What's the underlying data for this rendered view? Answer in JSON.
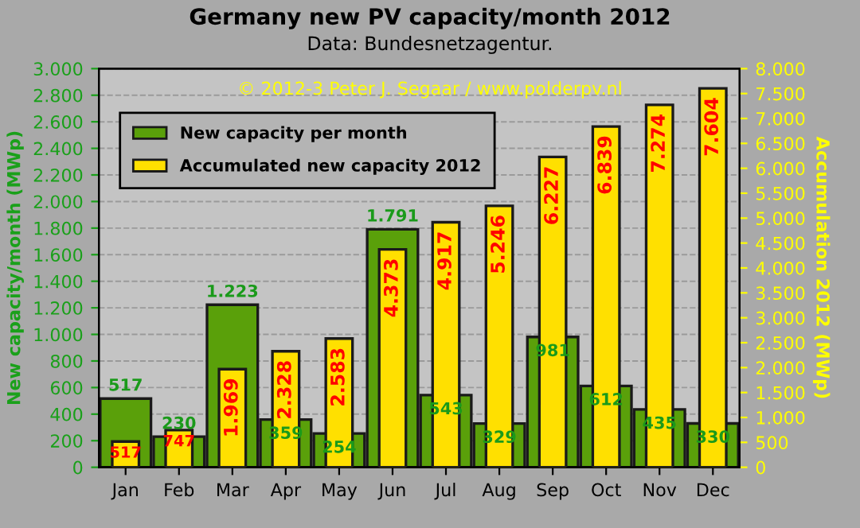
{
  "chart_data": {
    "type": "bar",
    "title": "Germany new PV capacity/month 2012",
    "subtitle": "Data: Bundesnetzagentur.",
    "ylabel": "New capacity/month (MWp)",
    "y2label": "Accumulation 2012 (MWp)",
    "annotations": [
      "© 2012-3 Peter J. Segaar / www.polderpv.nl"
    ],
    "categories": [
      "Jan",
      "Feb",
      "Mar",
      "Apr",
      "May",
      "Jun",
      "Jul",
      "Aug",
      "Sep",
      "Oct",
      "Nov",
      "Dec"
    ],
    "series": [
      {
        "name": "New capacity per month",
        "color": "#5aa00a",
        "values": [
          517,
          230,
          1223,
          359,
          254,
          1791,
          543,
          329,
          981,
          612,
          435,
          330
        ],
        "value_labels": [
          "517",
          "230",
          "1.223",
          "359",
          "254",
          "1.791",
          "543",
          "329",
          "981",
          "612",
          "435",
          "330"
        ]
      },
      {
        "name": "Accumulated new capacity 2012",
        "color": "#ffe000",
        "axis": "y2",
        "values": [
          517,
          747,
          1969,
          2328,
          2583,
          4373,
          4917,
          5246,
          6227,
          6839,
          7274,
          7604
        ],
        "value_labels": [
          "517",
          "747",
          "1.969",
          "2.328",
          "2.583",
          "4.373",
          "4.917",
          "5.246",
          "6.227",
          "6.839",
          "7.274",
          "7.604"
        ]
      }
    ],
    "ylim": [
      0,
      3000
    ],
    "yticks": [
      {
        "value": 0,
        "label": "0"
      },
      {
        "value": 200,
        "label": "200"
      },
      {
        "value": 400,
        "label": "400"
      },
      {
        "value": 600,
        "label": "600"
      },
      {
        "value": 800,
        "label": "800"
      },
      {
        "value": 1000,
        "label": "1.000"
      },
      {
        "value": 1200,
        "label": "1.200"
      },
      {
        "value": 1400,
        "label": "1.400"
      },
      {
        "value": 1600,
        "label": "1.600"
      },
      {
        "value": 1800,
        "label": "1.800"
      },
      {
        "value": 2000,
        "label": "2.000"
      },
      {
        "value": 2200,
        "label": "2.200"
      },
      {
        "value": 2400,
        "label": "2.400"
      },
      {
        "value": 2600,
        "label": "2.600"
      },
      {
        "value": 2800,
        "label": "2.800"
      },
      {
        "value": 3000,
        "label": "3.000"
      }
    ],
    "y2lim": [
      0,
      8000
    ],
    "y2ticks": [
      {
        "value": 0,
        "label": "0"
      },
      {
        "value": 500,
        "label": "500"
      },
      {
        "value": 1000,
        "label": "1.000"
      },
      {
        "value": 1500,
        "label": "1.500"
      },
      {
        "value": 2000,
        "label": "2.000"
      },
      {
        "value": 2500,
        "label": "2.500"
      },
      {
        "value": 3000,
        "label": "3.000"
      },
      {
        "value": 3500,
        "label": "3.500"
      },
      {
        "value": 4000,
        "label": "4.000"
      },
      {
        "value": 4500,
        "label": "4.500"
      },
      {
        "value": 5000,
        "label": "5.000"
      },
      {
        "value": 5500,
        "label": "5.500"
      },
      {
        "value": 6000,
        "label": "6.000"
      },
      {
        "value": 6500,
        "label": "6.500"
      },
      {
        "value": 7000,
        "label": "7.000"
      },
      {
        "value": 7500,
        "label": "7.500"
      },
      {
        "value": 8000,
        "label": "8.000"
      }
    ],
    "grid": "y",
    "legend": "top left"
  }
}
